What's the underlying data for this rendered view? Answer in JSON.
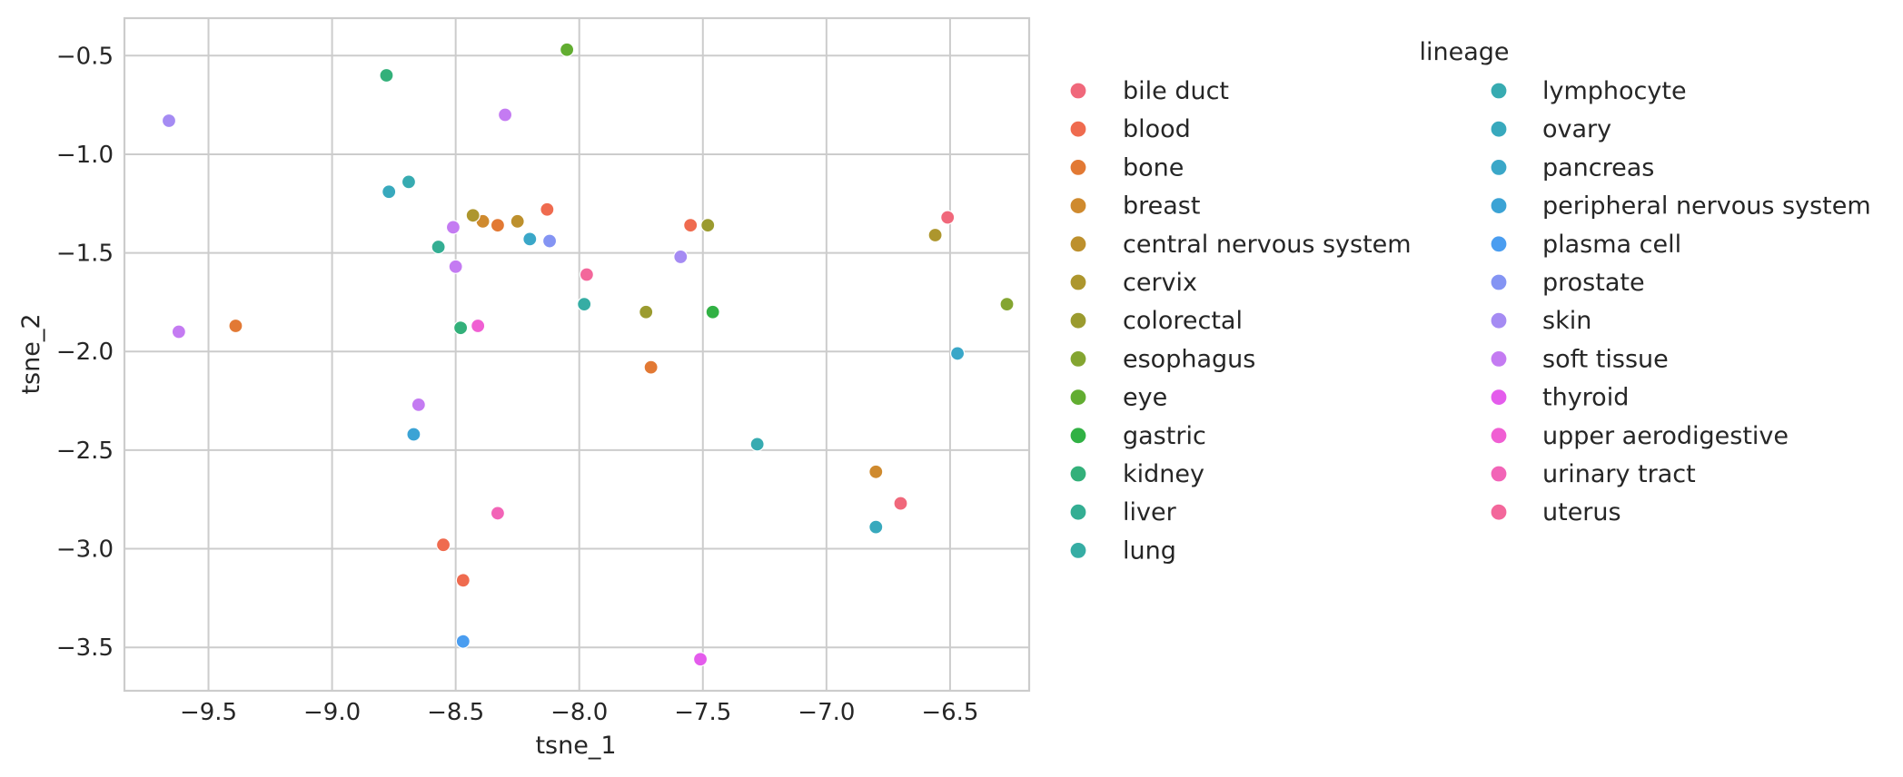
{
  "chart_data": {
    "type": "scatter",
    "title": "",
    "xlabel": "tsne_1",
    "ylabel": "tsne_2",
    "xlim": [
      -9.84,
      -6.18
    ],
    "ylim": [
      -3.72,
      -0.31
    ],
    "xticks": [
      -9.5,
      -9.0,
      -8.5,
      -8.0,
      -7.5,
      -7.0,
      -6.5
    ],
    "yticks": [
      -0.5,
      -1.0,
      -1.5,
      -2.0,
      -2.5,
      -3.0,
      -3.5
    ],
    "xtick_labels": [
      "−9.5",
      "−9.0",
      "−8.5",
      "−8.0",
      "−7.5",
      "−7.0",
      "−6.5"
    ],
    "ytick_labels": [
      "−0.5",
      "−1.0",
      "−1.5",
      "−2.0",
      "−2.5",
      "−3.0",
      "−3.5"
    ],
    "grid": true,
    "legend_title": "lineage",
    "legend_position": "outside-right",
    "series": [
      {
        "name": "bile duct",
        "color": "#f0687b",
        "points": [
          [
            -6.51,
            -1.32
          ],
          [
            -6.7,
            -2.77
          ]
        ]
      },
      {
        "name": "blood",
        "color": "#ef6b4f",
        "points": [
          [
            -8.13,
            -1.28
          ],
          [
            -7.55,
            -1.36
          ],
          [
            -8.55,
            -2.98
          ],
          [
            -8.47,
            -3.16
          ]
        ]
      },
      {
        "name": "bone",
        "color": "#e27934",
        "points": [
          [
            -9.39,
            -1.87
          ],
          [
            -8.33,
            -1.36
          ],
          [
            -7.71,
            -2.08
          ]
        ]
      },
      {
        "name": "breast",
        "color": "#cf8a2e",
        "points": [
          [
            -6.8,
            -2.61
          ],
          [
            -8.39,
            -1.34
          ]
        ]
      },
      {
        "name": "central nervous system",
        "color": "#bd902d",
        "points": [
          [
            -8.25,
            -1.34
          ]
        ]
      },
      {
        "name": "cervix",
        "color": "#ad962d",
        "points": [
          [
            -8.43,
            -1.31
          ],
          [
            -6.56,
            -1.41
          ]
        ]
      },
      {
        "name": "colorectal",
        "color": "#9b9b2f",
        "points": [
          [
            -7.48,
            -1.36
          ],
          [
            -7.73,
            -1.8
          ]
        ]
      },
      {
        "name": "esophagus",
        "color": "#84a531",
        "points": [
          [
            -6.27,
            -1.76
          ]
        ]
      },
      {
        "name": "eye",
        "color": "#62ad31",
        "points": [
          [
            -8.05,
            -0.47
          ]
        ]
      },
      {
        "name": "gastric",
        "color": "#31b144",
        "points": [
          [
            -7.46,
            -1.8
          ]
        ]
      },
      {
        "name": "kidney",
        "color": "#33b07a",
        "points": [
          [
            -8.78,
            -0.6
          ],
          [
            -8.48,
            -1.88
          ]
        ]
      },
      {
        "name": "liver",
        "color": "#34ae93",
        "points": [
          [
            -8.57,
            -1.47
          ]
        ]
      },
      {
        "name": "lung",
        "color": "#36ada4",
        "points": [
          [
            -7.98,
            -1.76
          ]
        ]
      },
      {
        "name": "lymphocyte",
        "color": "#37abb1",
        "points": [
          [
            -8.69,
            -1.14
          ],
          [
            -7.28,
            -2.47
          ]
        ]
      },
      {
        "name": "ovary",
        "color": "#38a9bd",
        "points": [
          [
            -8.77,
            -1.19
          ],
          [
            -6.8,
            -2.89
          ]
        ]
      },
      {
        "name": "pancreas",
        "color": "#3aa7c8",
        "points": [
          [
            -6.47,
            -2.01
          ],
          [
            -8.2,
            -1.43
          ]
        ]
      },
      {
        "name": "peripheral nervous system",
        "color": "#3ba3d5",
        "points": [
          [
            -8.67,
            -2.42
          ]
        ]
      },
      {
        "name": "plasma cell",
        "color": "#4a9df0",
        "points": [
          [
            -8.47,
            -3.47
          ]
        ]
      },
      {
        "name": "prostate",
        "color": "#8494f3",
        "points": [
          [
            -8.12,
            -1.44
          ]
        ]
      },
      {
        "name": "skin",
        "color": "#a58bf3",
        "points": [
          [
            -9.66,
            -0.83
          ],
          [
            -7.59,
            -1.52
          ]
        ]
      },
      {
        "name": "soft tissue",
        "color": "#c47bf2",
        "points": [
          [
            -9.62,
            -1.9
          ],
          [
            -8.3,
            -0.8
          ],
          [
            -8.51,
            -1.37
          ],
          [
            -8.5,
            -1.57
          ],
          [
            -8.65,
            -2.27
          ]
        ]
      },
      {
        "name": "thyroid",
        "color": "#e45cec",
        "points": [
          [
            -7.51,
            -3.56
          ]
        ]
      },
      {
        "name": "upper aerodigestive",
        "color": "#f05fd3",
        "points": [
          [
            -8.41,
            -1.87
          ]
        ]
      },
      {
        "name": "urinary tract",
        "color": "#f264b7",
        "points": [
          [
            -8.33,
            -2.82
          ]
        ]
      },
      {
        "name": "uterus",
        "color": "#f3679b",
        "points": [
          [
            -7.97,
            -1.61
          ]
        ]
      }
    ]
  }
}
